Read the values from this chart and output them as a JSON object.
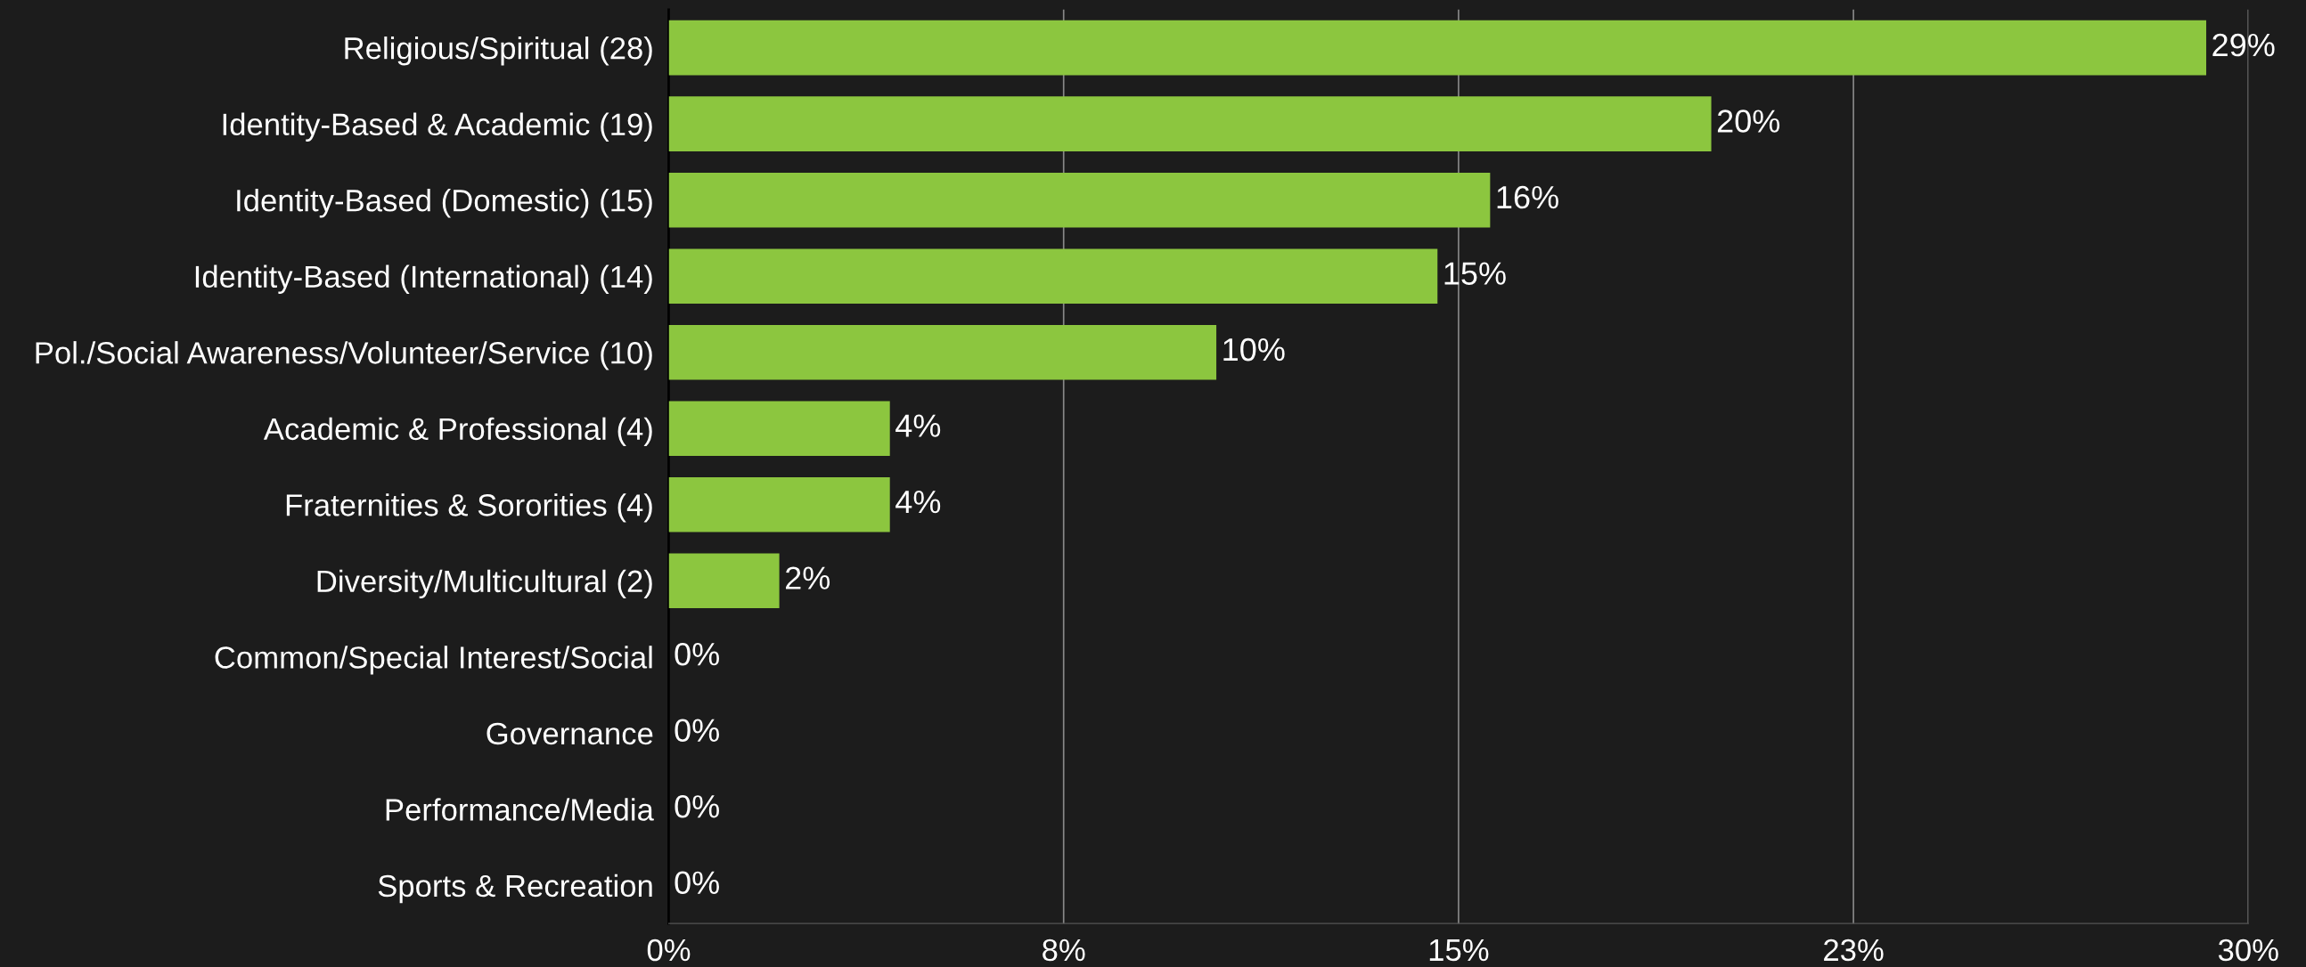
{
  "chart_data": {
    "type": "bar",
    "orientation": "horizontal",
    "categories": [
      "Religious/Spiritual (28)",
      "Identity-Based & Academic (19)",
      "Identity-Based (Domestic) (15)",
      "Identity-Based (International) (14)",
      "Pol./Social Awareness/Volunteer/Service (10)",
      "Academic & Professional (4)",
      "Fraternities & Sororities (4)",
      "Diversity/Multicultural (2)",
      "Common/Special Interest/Social",
      "Governance",
      "Performance/Media",
      "Sports & Recreation"
    ],
    "values": [
      29.2,
      19.8,
      15.6,
      14.6,
      10.4,
      4.2,
      4.2,
      2.1,
      0,
      0,
      0,
      0
    ],
    "value_labels": [
      "29%",
      "20%",
      "16%",
      "15%",
      "10%",
      "4%",
      "4%",
      "2%",
      "0%",
      "0%",
      "0%",
      "0%"
    ],
    "color": "#8cc63f",
    "xlim": [
      0,
      30
    ],
    "xticks": [
      {
        "value": 0,
        "label": "0%"
      },
      {
        "value": 7.5,
        "label": "8%"
      },
      {
        "value": 15,
        "label": "15%"
      },
      {
        "value": 22.5,
        "label": "23%"
      },
      {
        "value": 30,
        "label": "30%"
      }
    ],
    "grid": "x",
    "legend": false
  }
}
